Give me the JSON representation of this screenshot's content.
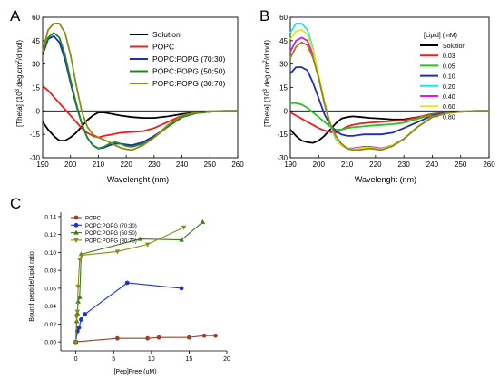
{
  "figure": {
    "panel_labels": [
      "A",
      "B",
      "C"
    ]
  },
  "chart_data": [
    {
      "panel": "A",
      "type": "line",
      "xlabel": "Wavelenght (nm)",
      "ylabel": "[Theta] (10^3.deg.cm^2/dmol)",
      "ylabel_parts": {
        "prefix": "[Theta] (10",
        "sup1": "3",
        "mid": ".deg.cm",
        "sup2": "2",
        "suffix": "/dmol)"
      },
      "xlim": [
        190,
        260
      ],
      "ylim": [
        -30,
        60
      ],
      "xticks": [
        190,
        200,
        210,
        220,
        230,
        240,
        250,
        260
      ],
      "yticks": [
        -30,
        -15,
        0,
        15,
        30,
        45,
        60
      ],
      "zero_line": true,
      "legend_position": "top-right",
      "series": [
        {
          "name": "Solution",
          "color": "#000000",
          "x": [
            190,
            192,
            194,
            196,
            198,
            200,
            202,
            204,
            206,
            208,
            210,
            212,
            215,
            218,
            222,
            226,
            230,
            235,
            240,
            245,
            250,
            255,
            260
          ],
          "y": [
            -7,
            -12,
            -16,
            -19,
            -19,
            -17,
            -14,
            -10,
            -6,
            -3,
            -1,
            -1,
            -2,
            -3,
            -4,
            -4.5,
            -4.5,
            -3.5,
            -2,
            -1,
            -0.5,
            -0.2,
            0
          ]
        },
        {
          "name": "POPC",
          "color": "#ee1c1c",
          "x": [
            190,
            192,
            194,
            196,
            198,
            200,
            202,
            204,
            206,
            208,
            210,
            212,
            215,
            218,
            222,
            226,
            230,
            235,
            240,
            245,
            250,
            255,
            260
          ],
          "y": [
            16,
            13,
            9,
            5,
            1,
            -3,
            -7,
            -11,
            -14,
            -16,
            -17,
            -16,
            -15,
            -14,
            -13.5,
            -13,
            -11,
            -7,
            -3,
            -1,
            -0.5,
            -0.2,
            0
          ]
        },
        {
          "name": "POPC:POPG (70:30)",
          "color": "#1f2fb4",
          "x": [
            190,
            192,
            194,
            196,
            198,
            200,
            202,
            204,
            206,
            208,
            210,
            212,
            214,
            216,
            218,
            220,
            222,
            226,
            230,
            235,
            240,
            245,
            250,
            255,
            260
          ],
          "y": [
            36,
            46,
            48,
            44,
            33,
            18,
            4,
            -8,
            -17,
            -22,
            -24,
            -23.5,
            -22,
            -21,
            -21,
            -21.5,
            -22,
            -20,
            -16,
            -10,
            -4,
            -1.5,
            -0.5,
            0,
            0
          ]
        },
        {
          "name": "POPC:POPG (50:50)",
          "color": "#1e8a1e",
          "x": [
            190,
            192,
            194,
            196,
            198,
            200,
            202,
            204,
            206,
            208,
            210,
            212,
            214,
            216,
            218,
            220,
            222,
            226,
            230,
            235,
            240,
            245,
            250,
            255,
            260
          ],
          "y": [
            38,
            47,
            50,
            47,
            36,
            20,
            5,
            -8,
            -17,
            -22,
            -24,
            -23,
            -21,
            -20,
            -21,
            -22.5,
            -23,
            -21,
            -17,
            -10,
            -4,
            -1.5,
            -0.5,
            0,
            0
          ]
        },
        {
          "name": "POPC:POPG (30:70)",
          "color": "#8f8a18",
          "x": [
            190,
            192,
            194,
            196,
            198,
            200,
            202,
            204,
            206,
            208,
            210,
            212,
            214,
            216,
            218,
            220,
            222,
            226,
            230,
            235,
            240,
            245,
            250,
            255,
            260
          ],
          "y": [
            38,
            52,
            56,
            56,
            50,
            36,
            17,
            0,
            -10,
            -15,
            -17,
            -18.5,
            -20,
            -22,
            -23.5,
            -24.5,
            -25,
            -22,
            -17,
            -9,
            -3,
            -1,
            -0.3,
            0,
            0
          ]
        }
      ]
    },
    {
      "panel": "B",
      "type": "line",
      "xlabel": "Wavelenght (nm)",
      "ylabel": "[Theta] (10^3.deg.cm^2/dmol)",
      "ylabel_parts": {
        "prefix": "[Theta] (10",
        "sup1": "3",
        "mid": ".deg.cm",
        "sup2": "2",
        "suffix": "/dmol)"
      },
      "xlim": [
        190,
        260
      ],
      "ylim": [
        -30,
        60
      ],
      "xticks": [
        190,
        200,
        210,
        220,
        230,
        240,
        250,
        260
      ],
      "yticks": [
        -30,
        -15,
        0,
        15,
        30,
        45,
        60
      ],
      "zero_line": true,
      "legend_title": "[Lipid] (mM)",
      "legend_position": "top-right",
      "series": [
        {
          "name": "Solution",
          "color": "#000000",
          "x": [
            190,
            192,
            194,
            196,
            198,
            200,
            202,
            204,
            206,
            208,
            210,
            212,
            215,
            218,
            222,
            226,
            230,
            235,
            240,
            245,
            250,
            255,
            260
          ],
          "y": [
            -12,
            -16,
            -19,
            -20,
            -20.5,
            -19,
            -16,
            -12,
            -8,
            -5,
            -4,
            -3.5,
            -4,
            -4.5,
            -5,
            -5.5,
            -5.5,
            -4,
            -2,
            -1,
            -0.5,
            -0.2,
            0
          ]
        },
        {
          "name": "0.03",
          "color": "#ee1c1c",
          "x": [
            190,
            192,
            194,
            196,
            198,
            200,
            202,
            204,
            206,
            208,
            210,
            212,
            215,
            218,
            222,
            226,
            230,
            235,
            240,
            245,
            250,
            255,
            260
          ],
          "y": [
            -1,
            -3,
            -5,
            -7,
            -9,
            -11,
            -12.5,
            -13.5,
            -14,
            -12,
            -10,
            -9,
            -8,
            -7.5,
            -7,
            -6.5,
            -6,
            -4,
            -2,
            -1,
            -0.5,
            -0.2,
            0
          ]
        },
        {
          "name": "0.05",
          "color": "#1ec81e",
          "x": [
            190,
            192,
            194,
            196,
            198,
            200,
            202,
            204,
            206,
            208,
            210,
            212,
            215,
            218,
            222,
            226,
            230,
            235,
            240,
            245,
            250,
            255,
            260
          ],
          "y": [
            5,
            5,
            4,
            2,
            -1,
            -4,
            -7,
            -10,
            -12,
            -12,
            -11,
            -10.5,
            -10,
            -9.5,
            -9,
            -8.5,
            -7.5,
            -5,
            -2.5,
            -1,
            -0.5,
            -0.2,
            0
          ]
        },
        {
          "name": "0.10",
          "color": "#1f2fb4",
          "x": [
            190,
            192,
            194,
            196,
            198,
            200,
            202,
            204,
            206,
            208,
            210,
            212,
            214,
            216,
            218,
            220,
            222,
            226,
            230,
            235,
            240,
            245,
            250,
            255,
            260
          ],
          "y": [
            24,
            28,
            28,
            26,
            18,
            8,
            -2,
            -9,
            -13,
            -15,
            -16,
            -16,
            -15.5,
            -15,
            -15,
            -15,
            -15,
            -14,
            -11,
            -7,
            -3,
            -1,
            -0.5,
            0,
            0
          ]
        },
        {
          "name": "0.20",
          "color": "#1ee6e6",
          "x": [
            190,
            192,
            194,
            196,
            198,
            200,
            202,
            204,
            206,
            208,
            210,
            212,
            214,
            216,
            218,
            220,
            222,
            226,
            230,
            235,
            240,
            245,
            250,
            255,
            260
          ],
          "y": [
            50,
            56,
            56,
            52,
            40,
            22,
            5,
            -9,
            -18,
            -22,
            -24,
            -24,
            -23.5,
            -23,
            -23,
            -23.5,
            -24,
            -22,
            -18,
            -10,
            -4,
            -1.5,
            -0.5,
            0,
            0
          ]
        },
        {
          "name": "0.40",
          "color": "#d61ed6",
          "x": [
            190,
            192,
            194,
            196,
            198,
            200,
            202,
            204,
            206,
            208,
            210,
            212,
            214,
            216,
            218,
            220,
            222,
            226,
            230,
            235,
            240,
            245,
            250,
            255,
            260
          ],
          "y": [
            38,
            45,
            47,
            45,
            36,
            22,
            5,
            -8,
            -17,
            -22,
            -24,
            -24,
            -23.5,
            -23,
            -23,
            -23.5,
            -24,
            -22,
            -18,
            -10,
            -4,
            -1.5,
            -0.5,
            0,
            0
          ]
        },
        {
          "name": "0.60",
          "color": "#e6e61e",
          "x": [
            190,
            192,
            194,
            196,
            198,
            200,
            202,
            204,
            206,
            208,
            210,
            212,
            214,
            216,
            218,
            220,
            222,
            226,
            230,
            235,
            240,
            245,
            250,
            255,
            260
          ],
          "y": [
            46,
            51,
            52,
            49,
            39,
            23,
            6,
            -8,
            -17,
            -22,
            -24,
            -24.5,
            -24,
            -23.5,
            -23.5,
            -24,
            -24.5,
            -22,
            -18,
            -10,
            -4,
            -1.5,
            -0.5,
            0,
            0
          ]
        },
        {
          "name": "0.80",
          "color": "#8f8a18",
          "x": [
            190,
            192,
            194,
            196,
            198,
            200,
            202,
            204,
            206,
            208,
            210,
            212,
            214,
            216,
            218,
            220,
            222,
            226,
            230,
            235,
            240,
            245,
            250,
            255,
            260
          ],
          "y": [
            34,
            41,
            44,
            42,
            34,
            21,
            5,
            -8,
            -16,
            -21,
            -24,
            -25,
            -25,
            -24.5,
            -24,
            -24.5,
            -25,
            -22.5,
            -18,
            -10,
            -4,
            -1.5,
            -0.5,
            0,
            0
          ]
        }
      ]
    },
    {
      "panel": "C",
      "type": "line",
      "xlabel": "[Pep]Free (uM)",
      "ylabel": "Bound peptide/Lipid ratio",
      "xlim": [
        -2,
        20
      ],
      "ylim": [
        -0.01,
        0.145
      ],
      "xticks": [
        0,
        5,
        10,
        15,
        20
      ],
      "yticks": [
        0.0,
        0.02,
        0.04,
        0.06,
        0.08,
        0.1,
        0.12,
        0.14
      ],
      "yticklabels": [
        "0.00",
        "0.02",
        "0.04",
        "0.06",
        "0.08",
        "0.10",
        "0.12",
        "0.14"
      ],
      "legend_position": "top-left",
      "series": [
        {
          "name": "POPC",
          "color": "#a0402a",
          "marker": "circle",
          "x": [
            0,
            5.5,
            9.5,
            11,
            15,
            17,
            18.5
          ],
          "y": [
            0.0,
            0.004,
            0.004,
            0.005,
            0.005,
            0.007,
            0.007
          ]
        },
        {
          "name": "POPC:POPG (70:30)",
          "color": "#1f2fd6",
          "marker": "circle",
          "x": [
            0,
            0.2,
            0.4,
            0.7,
            1.2,
            6.8,
            14
          ],
          "y": [
            0.0,
            0.012,
            0.016,
            0.025,
            0.031,
            0.066,
            0.06
          ]
        },
        {
          "name": "POPC:POPG (50:50)",
          "color": "#3b7a1e",
          "marker": "triangle-up",
          "x": [
            0,
            0.1,
            0.2,
            0.3,
            0.5,
            0.7,
            8.5,
            14,
            16.8
          ],
          "y": [
            0.0,
            0.023,
            0.032,
            0.045,
            0.05,
            0.098,
            0.115,
            0.114,
            0.134
          ]
        },
        {
          "name": "POPC:POPG (30:70)",
          "color": "#8f8a18",
          "marker": "triangle-down",
          "x": [
            0,
            0.1,
            0.2,
            0.3,
            0.5,
            0.8,
            5.5,
            9.5,
            14.3
          ],
          "y": [
            0.0,
            0.028,
            0.034,
            0.062,
            0.092,
            0.097,
            0.101,
            0.109,
            0.128
          ]
        }
      ]
    }
  ]
}
